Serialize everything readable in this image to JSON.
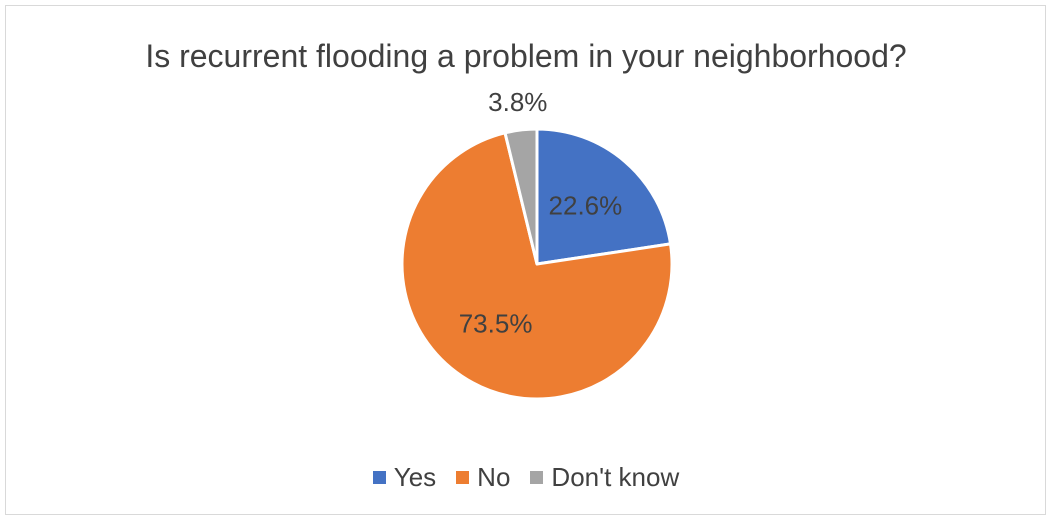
{
  "chart_data": {
    "type": "pie",
    "title": "Is recurrent flooding a problem in your neighborhood?",
    "categories": [
      "Yes",
      "No",
      "Don't know"
    ],
    "values": [
      22.6,
      73.5,
      3.8
    ],
    "labels": [
      "22.6%",
      "73.5%",
      "3.8%"
    ],
    "colors": [
      "#4472c4",
      "#ed7d31",
      "#a5a5a5"
    ],
    "legend_position": "bottom"
  }
}
